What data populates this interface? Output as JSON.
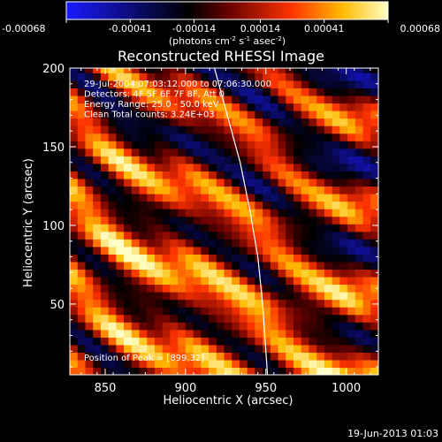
{
  "chart_data": {
    "type": "heatmap",
    "title": "Reconstructed RHESSI Image",
    "xlabel": "Heliocentric X (arcsec)",
    "ylabel": "Heliocentric Y (arcsec)",
    "xlim": [
      828,
      1020
    ],
    "ylim": [
      5,
      200
    ],
    "xticks": [
      850,
      900,
      950,
      1000
    ],
    "yticks": [
      50,
      100,
      150,
      200
    ],
    "colorbar": {
      "min": -0.00068,
      "max": 0.00068,
      "ticks": [
        "-0.00068",
        "-0.00041",
        "-0.00014",
        "0.00014",
        "0.00041",
        "0.00068"
      ],
      "tick_values": [
        -0.00068,
        -0.00041,
        -0.00014,
        0.00014,
        0.00041,
        0.00068
      ],
      "unit_label": "(photons cm",
      "unit_exp1": "-2",
      "unit_mid": " s",
      "unit_exp2": "-1",
      "unit_mid2": " asec",
      "unit_exp3": "-2",
      "unit_end": ")"
    },
    "annotations": [
      "29-Jul-2004 07:03:12.000 to 07:06:30.000",
      "Detectors: 4F 5F 6F 7F 8F, Att 0",
      "Energy Range: 25.0 - 50.0 keV",
      "Clean     Total counts: 3.24E+03"
    ],
    "peak_label": "Position of Peak = [899,32]",
    "peak": [
      899,
      32
    ],
    "limb": [
      [
        918,
        200
      ],
      [
        926,
        170
      ],
      [
        934,
        140
      ],
      [
        940,
        110
      ],
      [
        945,
        80
      ],
      [
        948,
        50
      ],
      [
        950,
        20
      ],
      [
        951,
        5
      ]
    ],
    "timestamp": "19-Jun-2013 01:03"
  }
}
